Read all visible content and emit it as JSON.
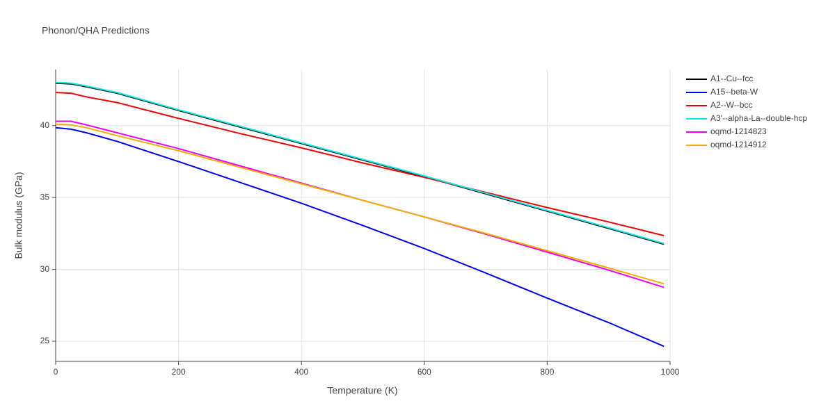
{
  "chart_data": {
    "type": "line",
    "title": "Phonon/QHA Predictions",
    "x_label": "Temperature (K)",
    "y_label": "Bulk modulus (GPa)",
    "x": [
      0,
      25,
      50,
      100,
      200,
      300,
      400,
      500,
      600,
      700,
      800,
      900,
      990
    ],
    "series": [
      {
        "name": "A1--Cu--fcc",
        "color": "#000000",
        "values": [
          42.95,
          42.9,
          42.7,
          42.25,
          41.05,
          39.9,
          38.75,
          37.6,
          36.45,
          35.25,
          34.05,
          32.85,
          31.75
        ]
      },
      {
        "name": "A15--beta-W",
        "color": "#0000ee",
        "values": [
          39.85,
          39.75,
          39.5,
          38.9,
          37.5,
          36.05,
          34.6,
          33.05,
          31.45,
          29.75,
          28.0,
          26.3,
          24.65
        ]
      },
      {
        "name": "A2--W--bcc",
        "color": "#ee0000",
        "values": [
          42.3,
          42.25,
          42.0,
          41.6,
          40.5,
          39.45,
          38.45,
          37.4,
          36.4,
          35.35,
          34.3,
          33.3,
          32.35
        ]
      },
      {
        "name": "A3'--alpha-La--double-hcp",
        "color": "#00eeee",
        "values": [
          43.0,
          42.95,
          42.75,
          42.3,
          41.1,
          39.95,
          38.8,
          37.65,
          36.5,
          35.3,
          34.1,
          32.9,
          31.8
        ]
      },
      {
        "name": "oqmd-1214823",
        "color": "#ee00ee",
        "values": [
          40.3,
          40.3,
          40.05,
          39.5,
          38.4,
          37.2,
          36.0,
          34.8,
          33.65,
          32.45,
          31.2,
          29.95,
          28.75
        ]
      },
      {
        "name": "oqmd-1214912",
        "color": "#eeb000",
        "values": [
          40.1,
          40.05,
          39.85,
          39.3,
          38.25,
          37.1,
          35.95,
          34.8,
          33.65,
          32.5,
          31.3,
          30.1,
          29.0
        ]
      }
    ],
    "xlim": [
      0,
      1000
    ],
    "xticks": [
      0,
      200,
      400,
      600,
      800,
      1000
    ],
    "ylim": [
      23.6,
      43.9
    ],
    "yticks": [
      25,
      30,
      35,
      40
    ],
    "grid": true,
    "legend": "right"
  }
}
